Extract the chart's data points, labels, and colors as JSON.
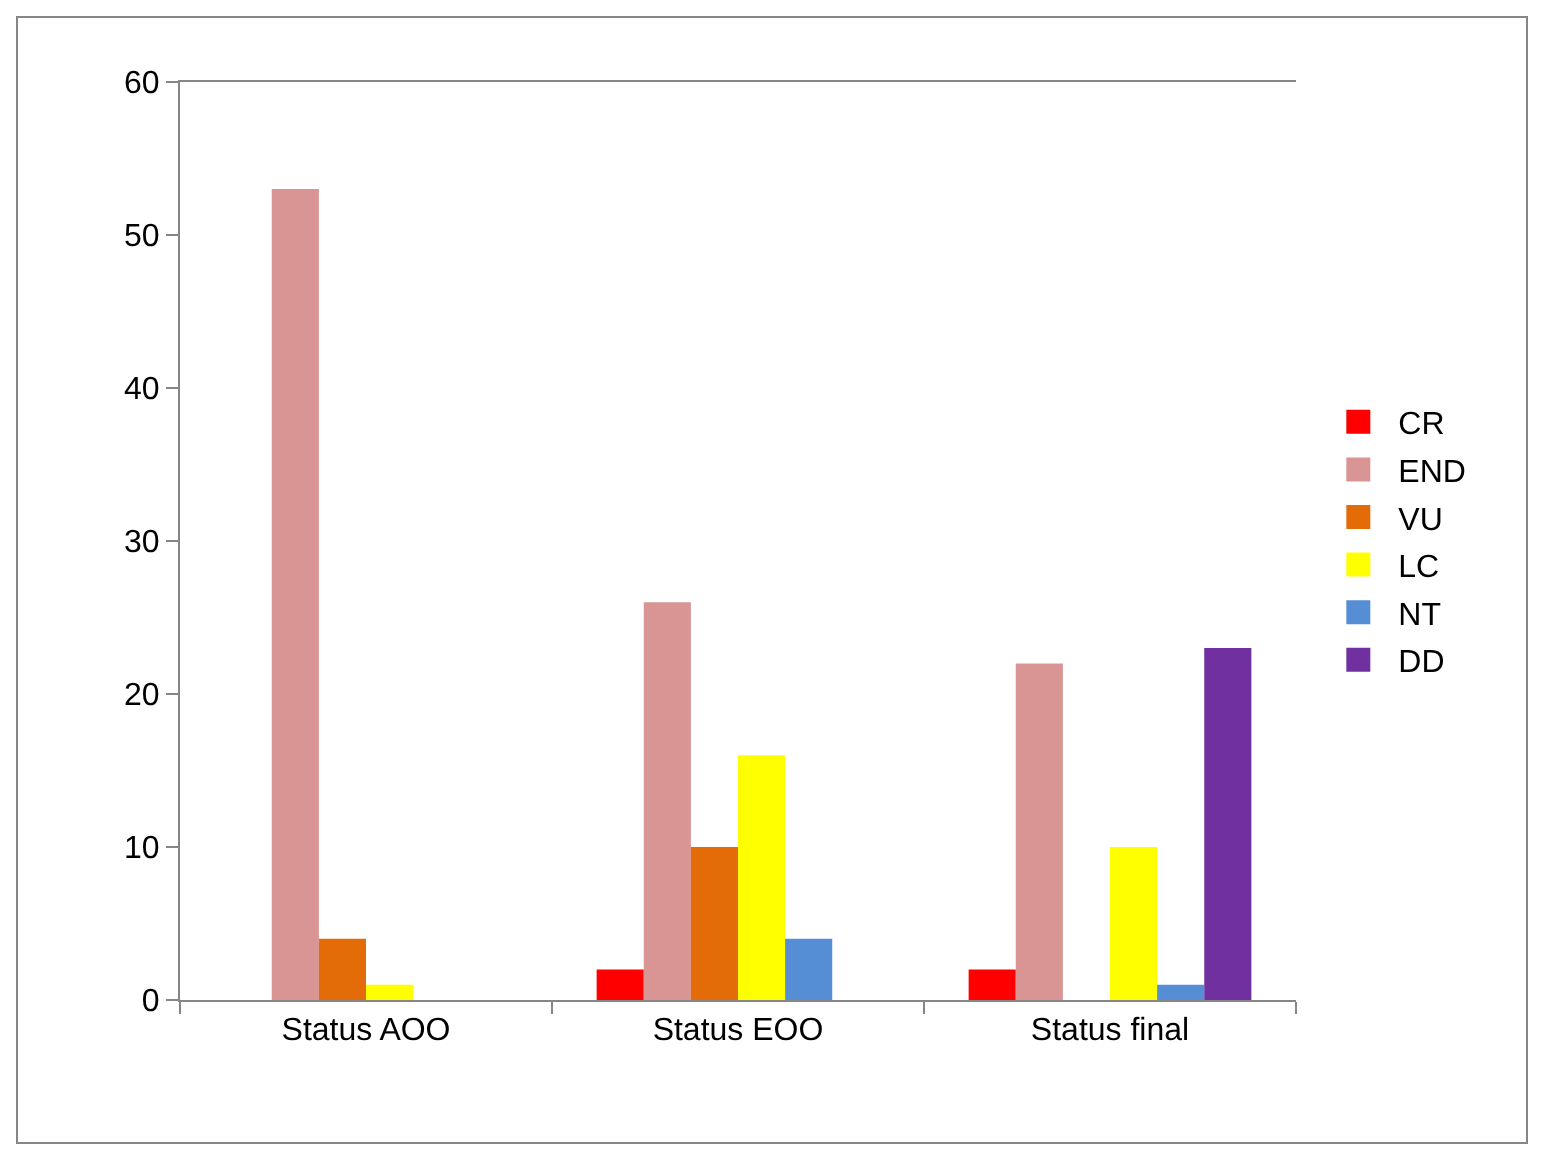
{
  "chart_data": {
    "type": "bar",
    "categories": [
      "Status AOO",
      "Status EOO",
      "Status final"
    ],
    "series": [
      {
        "name": "CR",
        "color": "#ff0000",
        "values": [
          0,
          2,
          2
        ]
      },
      {
        "name": "END",
        "color": "#d99594",
        "values": [
          53,
          26,
          22
        ]
      },
      {
        "name": "VU",
        "color": "#e36c09",
        "values": [
          4,
          10,
          0
        ]
      },
      {
        "name": "LC",
        "color": "#ffff00",
        "values": [
          1,
          16,
          10
        ]
      },
      {
        "name": "NT",
        "color": "#558ed5",
        "values": [
          0,
          4,
          1
        ]
      },
      {
        "name": "DD",
        "color": "#7030a0",
        "values": [
          0,
          0,
          23
        ]
      }
    ],
    "ylim": [
      0,
      60
    ],
    "yticks": [
      0,
      10,
      20,
      30,
      40,
      50,
      60
    ],
    "grid": false,
    "legend": "right"
  }
}
